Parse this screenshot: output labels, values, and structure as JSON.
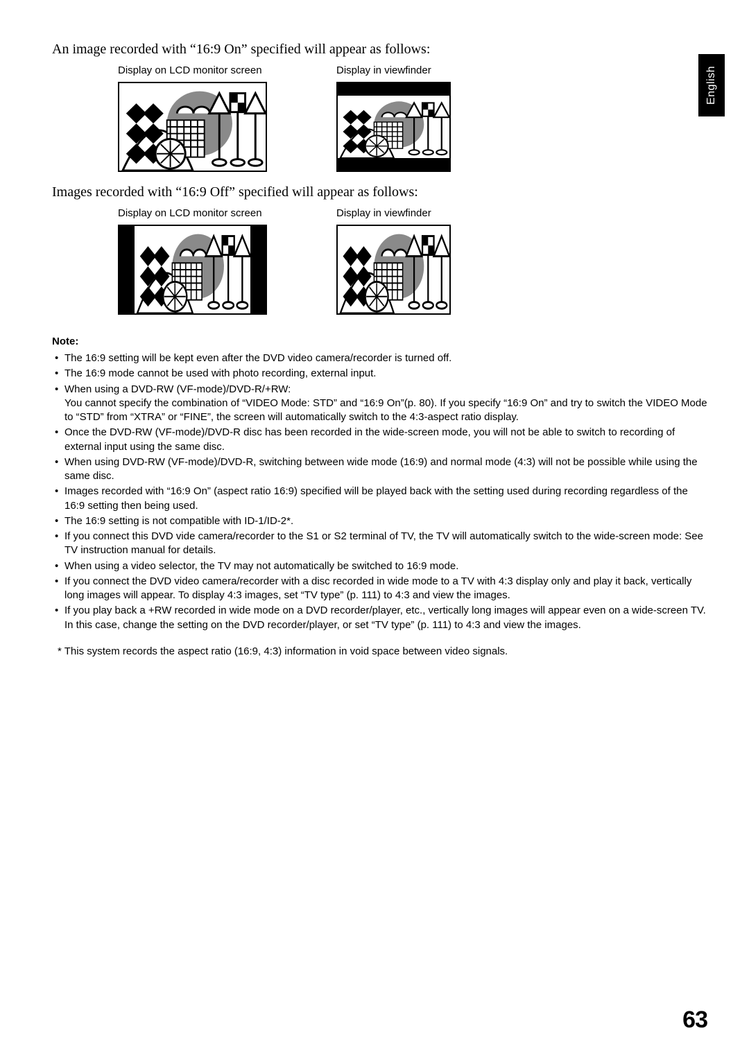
{
  "language_tab": "English",
  "intro_on": "An image recorded with “16:9 On” specified will appear as follows:",
  "intro_off": "Images recorded with “16:9 Off” specified will appear as follows:",
  "caption_lcd": "Display on LCD monitor screen",
  "caption_vf": "Display in viewfinder",
  "note_heading": "Note:",
  "notes": [
    "The 16:9 setting will be kept even after the DVD video camera/recorder is turned off.",
    "The 16:9 mode cannot be used with photo recording, external input.",
    "When using a DVD-RW (VF-mode)/DVD-R/+RW:\nYou cannot specify the combination of “VIDEO Mode: STD” and “16:9 On”(p. 80). If you specify “16:9 On” and try to switch the VIDEO Mode to “STD” from “XTRA” or “FINE”, the screen will automatically switch to the 4:3-aspect ratio display.",
    "Once the DVD-RW (VF-mode)/DVD-R disc has been recorded in the wide-screen mode, you will not be able to switch to recording of external input using the same disc.",
    "When using DVD-RW (VF-mode)/DVD-R, switching between wide mode (16:9) and normal mode (4:3) will not be possible while using the same disc.",
    "Images recorded with “16:9 On” (aspect ratio 16:9) specified will be played back with the setting used during recording regardless of the 16:9 setting then being used.",
    "The 16:9 setting is not compatible with ID-1/ID-2*.",
    "If you connect this DVD vide camera/recorder to the S1 or S2 terminal of TV, the TV will automatically switch to the wide-screen mode: See TV instruction manual for details.",
    "When using a video selector, the TV may not automatically be switched to 16:9 mode.",
    "If you connect the DVD video camera/recorder with a disc recorded in wide mode to a TV with 4:3 display only and play it back, vertically long images will appear. To display 4:3 images, set “TV type” (p. 111) to 4:3 and view the images.",
    "If you play back a +RW recorded in wide mode on a DVD recorder/player, etc., vertically long images will appear even on a wide-screen TV. In this case, change the setting on the DVD recorder/player, or set “TV type” (p. 111) to 4:3 and view the images."
  ],
  "footnote": "*  This system records the aspect ratio (16:9, 4:3) information in void space between video signals.",
  "page_number": "63",
  "colors": {
    "text": "#000000",
    "background": "#ffffff",
    "scene_gray": "#8a8a8a"
  }
}
